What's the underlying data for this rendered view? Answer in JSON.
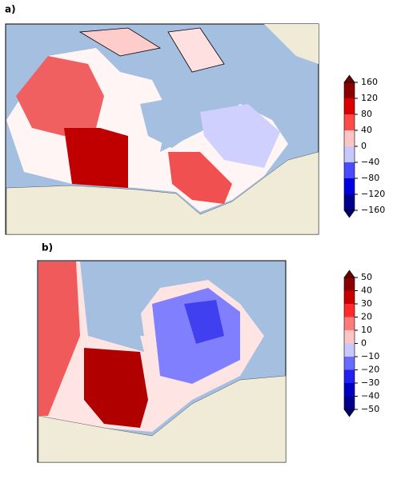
{
  "panels": [
    {
      "label": "a)",
      "lim": [
        -160,
        160
      ],
      "ticks": [
        {
          "value": -160,
          "label": "−160"
        },
        {
          "value": -120,
          "label": "−120"
        },
        {
          "value": -80,
          "label": "−80"
        },
        {
          "value": -40,
          "label": "−40"
        },
        0,
        40,
        80,
        120,
        160
      ],
      "colors": [
        "#00008a",
        "#0000e0",
        "#4a4aff",
        "#c8c8ff",
        "#ffc4c4",
        "#ff4a4a",
        "#dc0000",
        "#8a0000"
      ],
      "under_color": "#00006a",
      "over_color": "#6a0000"
    },
    {
      "label": "b)",
      "lim": [
        -50,
        50
      ],
      "ticks": [
        {
          "value": -50,
          "label": "−50"
        },
        {
          "value": -40,
          "label": "−40"
        },
        {
          "value": -30,
          "label": "−30"
        },
        {
          "value": -20,
          "label": "−20"
        },
        {
          "value": -10,
          "label": "−10"
        },
        0,
        10,
        20,
        30,
        40,
        50
      ],
      "colors": [
        "#00008a",
        "#0000c0",
        "#2020f0",
        "#6a6aff",
        "#c8c8ff",
        "#ffc4c4",
        "#ff7a7a",
        "#ff2a2a",
        "#c80000",
        "#8a0000"
      ],
      "under_color": "#00006a",
      "over_color": "#6a0000"
    }
  ]
}
